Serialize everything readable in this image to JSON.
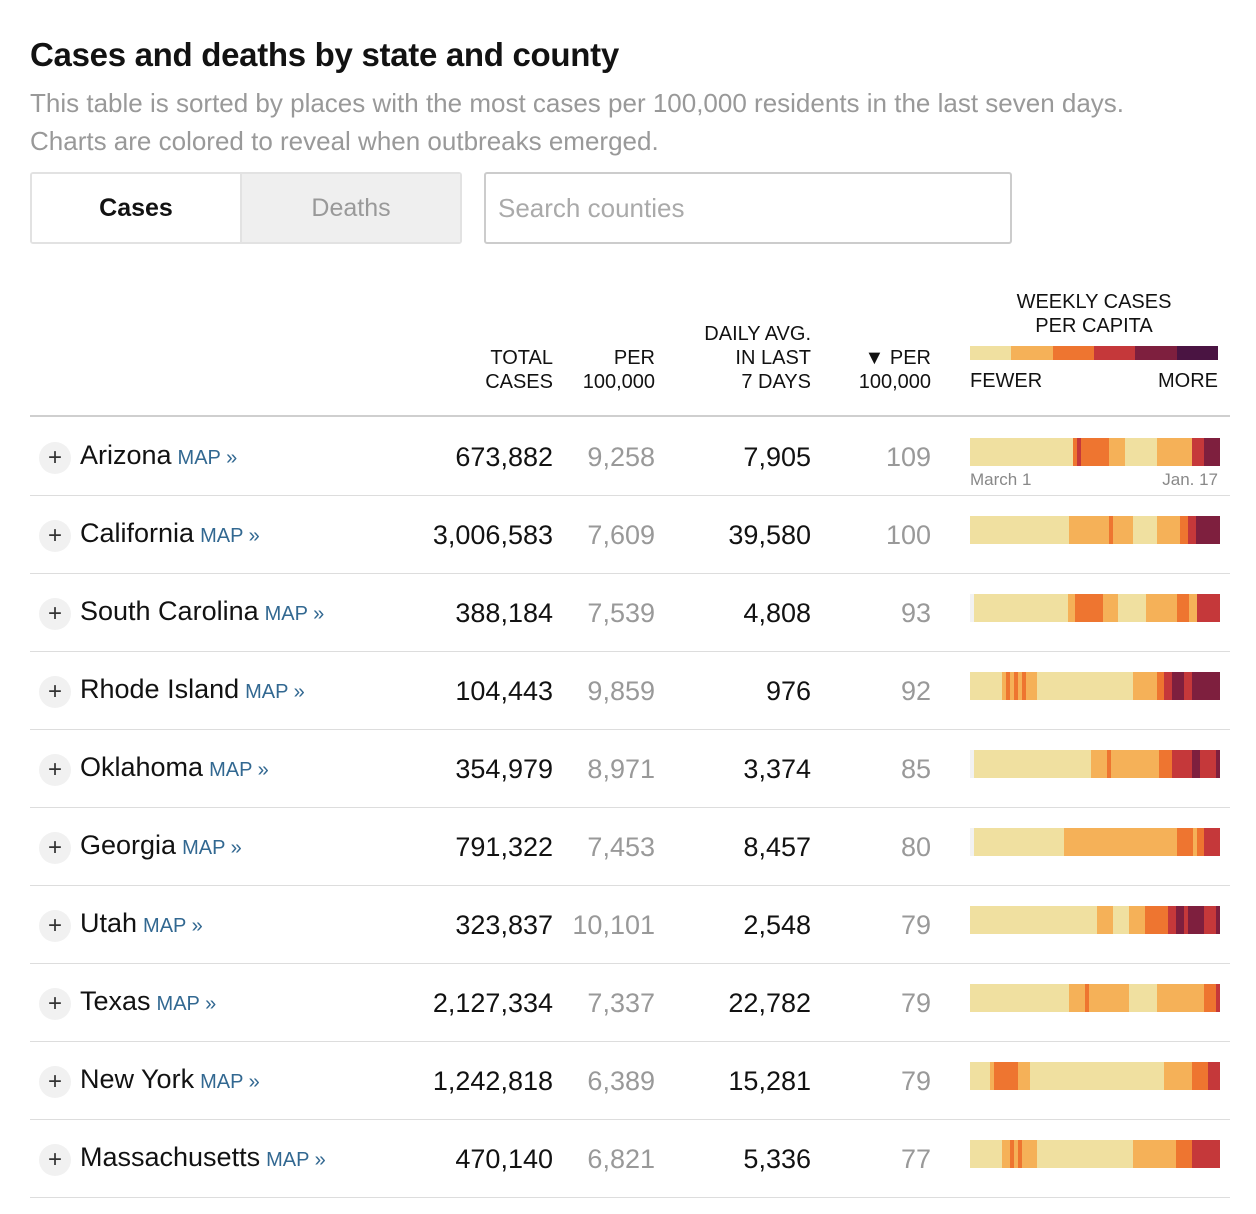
{
  "title": "Cases and deaths by state and county",
  "subtitle": "This table is sorted by places with the most cases per 100,000 residents in the last seven days. Charts are colored to reveal when outbreaks emerged.",
  "toggle": {
    "cases_label": "Cases",
    "deaths_label": "Deaths"
  },
  "search": {
    "placeholder": "Search counties"
  },
  "headers": {
    "total_cases": "TOTAL\nCASES",
    "per_100k": "PER\n100,000",
    "daily_avg": "DAILY AVG.\nIN LAST\n7 DAYS",
    "per_100k_7d": "▼ PER\n100,000",
    "weekly": "WEEKLY CASES\nPER CAPITA",
    "fewer": "FEWER",
    "more": "MORE"
  },
  "axis": {
    "start": "March 1",
    "end": "Jan. 17"
  },
  "map_label": "MAP »",
  "plus_label": "+",
  "colors": {
    "scale": [
      "#f0e0a0",
      "#f5b158",
      "#ee7530",
      "#c5383a",
      "#7e1f3e",
      "#4a1442"
    ],
    "empty": "#f2f2f2",
    "map_link": "#326891"
  },
  "rows": [
    {
      "state": "Arizona",
      "total": "673,882",
      "per100k": "9,258",
      "daily": "7,905",
      "per100k7": "109",
      "weekly": "000000000000000000000000002322222221111000000001111111113334444"
    },
    {
      "state": "California",
      "total": "3,006,583",
      "per100k": "7,609",
      "daily": "39,580",
      "per100k7": "100",
      "weekly": "000000000000000000000000011111111112111110000001111112233444444"
    },
    {
      "state": "South Carolina",
      "total": "388,184",
      "per100k": "7,539",
      "daily": "4,808",
      "per100k7": "93",
      "weekly": "x000000000000000000000000112222222111100000001111111122211333333"
    },
    {
      "state": "Rhode Island",
      "total": "104,443",
      "per100k": "9,859",
      "daily": "976",
      "per100k7": "92",
      "weekly": "000000001212121110000000000000000000000001111112233444334444444"
    },
    {
      "state": "Oklahoma",
      "total": "354,979",
      "per100k": "8,971",
      "daily": "3,374",
      "per100k7": "85",
      "weekly": "x0000000000000000000000000000011112111111111111222333334433334"
    },
    {
      "state": "Georgia",
      "total": "791,322",
      "per100k": "7,453",
      "daily": "8,457",
      "per100k7": "80",
      "weekly": "x000000000000000000000001111111111111111111111111111122221223333"
    },
    {
      "state": "Utah",
      "total": "323,837",
      "per100k": "10,101",
      "daily": "2,548",
      "per100k7": "79",
      "weekly": "000000000000000000000000000000001111000011112222223344344443334"
    },
    {
      "state": "Texas",
      "total": "2,127,334",
      "per100k": "7,337",
      "daily": "22,782",
      "per100k7": "79",
      "weekly": "000000000000000000000000011112111111111100000001111111111112223"
    },
    {
      "state": "New York",
      "total": "1,242,818",
      "per100k": "6,389",
      "daily": "15,281",
      "per100k7": "79",
      "weekly": "00000122222211100000000000000000000000000000000011111112222333"
    },
    {
      "state": "Massachusetts",
      "total": "470,140",
      "per100k": "6,821",
      "daily": "5,336",
      "per100k7": "77",
      "weekly": "000000001121211110000000000000000000000001111111111122223333333"
    }
  ]
}
